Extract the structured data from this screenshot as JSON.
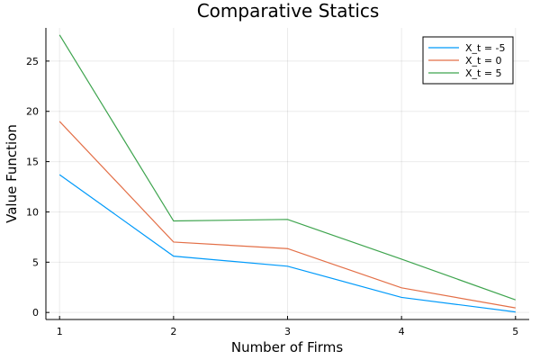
{
  "chart_data": {
    "type": "line",
    "title": "Comparative Statics",
    "xlabel": "Number of Firms",
    "ylabel": "Value Function",
    "x": [
      1,
      2,
      3,
      4,
      5
    ],
    "xlim": [
      0.88,
      5.12
    ],
    "ylim": [
      -0.7,
      28.3
    ],
    "xticks": [
      "1",
      "2",
      "3",
      "4",
      "5"
    ],
    "yticks": [
      "0",
      "5",
      "10",
      "15",
      "20",
      "25"
    ],
    "grid": true,
    "legend_position": "top-right",
    "series": [
      {
        "name": "X_t = -5",
        "color": "#009AFA",
        "values": [
          13.7,
          5.6,
          4.6,
          1.5,
          0.05
        ]
      },
      {
        "name": "X_t = 0",
        "color": "#E36F47",
        "values": [
          19.0,
          7.0,
          6.35,
          2.45,
          0.45
        ]
      },
      {
        "name": "X_t = 5",
        "color": "#3EA44E",
        "values": [
          27.6,
          9.1,
          9.25,
          5.3,
          1.25
        ]
      }
    ]
  }
}
